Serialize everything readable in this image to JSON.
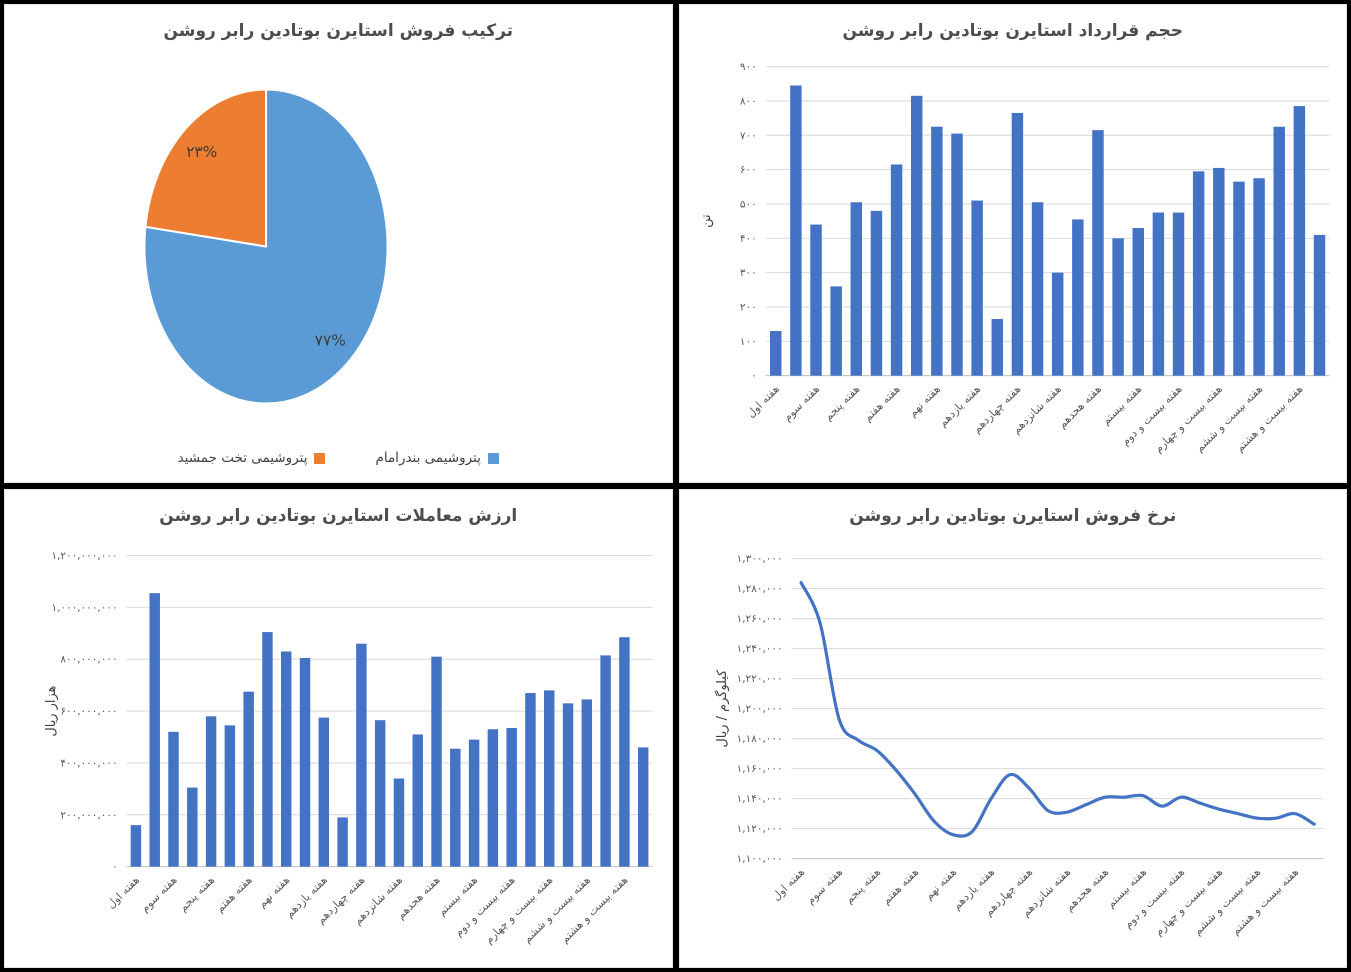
{
  "app": {
    "background_color": "#000000",
    "panel_color": "#ffffff",
    "gridline_color": "#D9D9D9",
    "axisline_color": "#BFBFBF",
    "text_color": "#595959"
  },
  "chart_data": [
    {
      "type": "pie",
      "title": "ترکیب فروش استایرن بوتادین رابر روشن",
      "labels": [
        "پتروشیمی بندرامام",
        "پتروشیمی تخت جمشید"
      ],
      "values": [
        77,
        23
      ],
      "value_labels": [
        "۷۷%",
        "۲۳%"
      ],
      "colors": [
        "#5B9BD5",
        "#ED7D31"
      ],
      "legend_position": "bottom",
      "start_angle_deg": 0,
      "direction": "clockwise"
    },
    {
      "type": "bar",
      "title": "حجم قرارداد استایرن بوتادین رابر روشن",
      "ylabel": "تن",
      "ylim": [
        0,
        900
      ],
      "ytick_step": 100,
      "bar_color": "#4472C4",
      "grid": true,
      "x_tick_labels": [
        "هفته اول",
        "هفته سوم",
        "هفته پنجم",
        "هفته هفتم",
        "هفته نهم",
        "هفته یازدهم",
        "هفته چهاردهم",
        "هفته شانزدهم",
        "هفته هجدهم",
        "هفته بیستم",
        "هفته بیست و دوم",
        "هفته بیست و چهارم",
        "هفته بیست و ششم",
        "هفته بیست و هشتم"
      ],
      "x_tick_every": 2,
      "values": [
        130,
        845,
        440,
        260,
        505,
        480,
        615,
        815,
        725,
        705,
        510,
        165,
        765,
        505,
        300,
        455,
        715,
        400,
        430,
        475,
        475,
        595,
        605,
        565,
        575,
        725,
        785,
        410
      ]
    },
    {
      "type": "bar",
      "title": "ارزش معاملات استایرن بوتادین رابر روشن",
      "ylabel": "هزار ریال",
      "ylim": [
        0,
        1200000000
      ],
      "ytick_step": 200000000,
      "bar_color": "#4472C4",
      "grid": true,
      "x_tick_labels": [
        "هفته اول",
        "هفته سوم",
        "هفته پنجم",
        "هفته هفتم",
        "هفته نهم",
        "هفته یازدهم",
        "هفته چهاردهم",
        "هفته شانزدهم",
        "هفته هجدهم",
        "هفته بیستم",
        "هفته بیست و دوم",
        "هفته بیست و چهارم",
        "هفته بیست و ششم",
        "هفته بیست و هشتم"
      ],
      "x_tick_every": 2,
      "values": [
        160000000,
        1055000000,
        520000000,
        305000000,
        580000000,
        545000000,
        675000000,
        905000000,
        830000000,
        805000000,
        575000000,
        190000000,
        860000000,
        565000000,
        340000000,
        510000000,
        810000000,
        455000000,
        490000000,
        530000000,
        535000000,
        670000000,
        680000000,
        630000000,
        645000000,
        815000000,
        885000000,
        460000000
      ]
    },
    {
      "type": "line",
      "title": "نرخ فروش استایرن بوتادین رابر روشن",
      "ylabel": "کیلوگرم / ریال",
      "ylim": [
        1100000,
        1300000
      ],
      "ytick_step": 20000,
      "line_color": "#4472C4",
      "smooth": true,
      "grid": true,
      "x_tick_labels": [
        "هفته اول",
        "هفته سوم",
        "هفته پنجم",
        "هفته هفتم",
        "هفته نهم",
        "هفته یازدهم",
        "هفته چهاردهم",
        "هفته شانزدهم",
        "هفته هجدهم",
        "هفته بیستم",
        "هفته بیست و دوم",
        "هفته بیست و چهارم",
        "هفته بیست و ششم",
        "هفته بیست و هشتم"
      ],
      "x_tick_every": 2,
      "values": [
        1284000,
        1257000,
        1193000,
        1179000,
        1172000,
        1159000,
        1143000,
        1125000,
        1116000,
        1118000,
        1140000,
        1156000,
        1147000,
        1132000,
        1131000,
        1136000,
        1141000,
        1141000,
        1142000,
        1135000,
        1141000,
        1137000,
        1133000,
        1130000,
        1127000,
        1127000,
        1130000,
        1123000
      ]
    }
  ]
}
